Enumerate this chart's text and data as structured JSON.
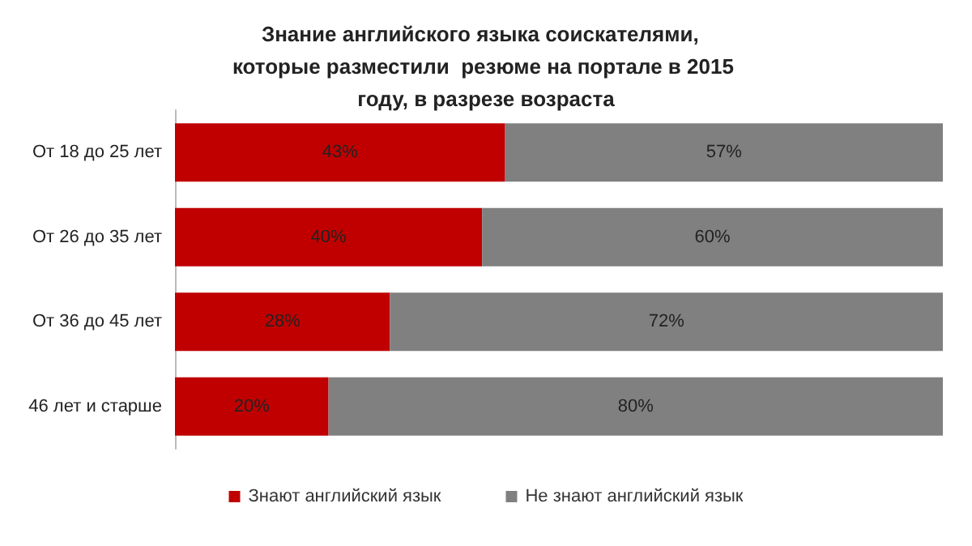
{
  "chart_data": {
    "type": "bar",
    "title": "Знание английского языка соискателями,  которые разместили  резюме на портале в 2015 году, в разрезе возраста",
    "orientation": "horizontal",
    "stacked": true,
    "categories": [
      "От 18 до 25 лет",
      "От 26 до 35 лет",
      "От 36 до 45 лет",
      "46 лет и старше"
    ],
    "series": [
      {
        "name": "Знают английский язык",
        "color": "#c00000",
        "values": [
          43,
          40,
          28,
          20
        ],
        "value_labels": [
          "43%",
          "40%",
          "28%",
          "20%"
        ]
      },
      {
        "name": "Не знают английский язык",
        "color": "#808080",
        "values": [
          57,
          60,
          72,
          80
        ],
        "value_labels": [
          "57%",
          "60%",
          "72%",
          "80%"
        ]
      }
    ],
    "legend": "bottom"
  }
}
